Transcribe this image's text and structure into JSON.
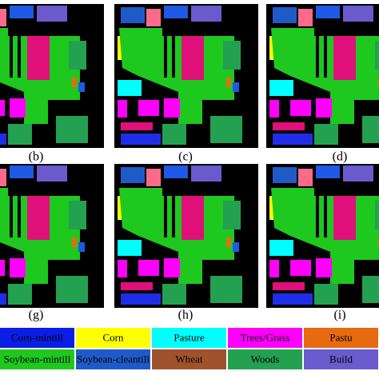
{
  "panels": [
    {
      "label": "(b)"
    },
    {
      "label": "(c)"
    },
    {
      "label": "(d)"
    },
    {
      "label": "(g)"
    },
    {
      "label": "(h)"
    },
    {
      "label": "(i)"
    }
  ],
  "legend": [
    {
      "name": "Corn-mintill",
      "color": "#0a1ee6"
    },
    {
      "name": "Corn",
      "color": "#ffff00"
    },
    {
      "name": "Pasture",
      "color": "#00ffff"
    },
    {
      "name": "Trees/Grass",
      "color": "#ff00ff"
    },
    {
      "name": "Pastu",
      "color": "#e86a10"
    },
    {
      "name": "Soybean-mintill",
      "color": "#1ec81e"
    },
    {
      "name": "Soybean-cleantill",
      "color": "#1f5ac8"
    },
    {
      "name": "Wheat",
      "color": "#a0522d"
    },
    {
      "name": "Woods",
      "color": "#23a050"
    },
    {
      "name": "Build",
      "color": "#6a5acd"
    }
  ]
}
